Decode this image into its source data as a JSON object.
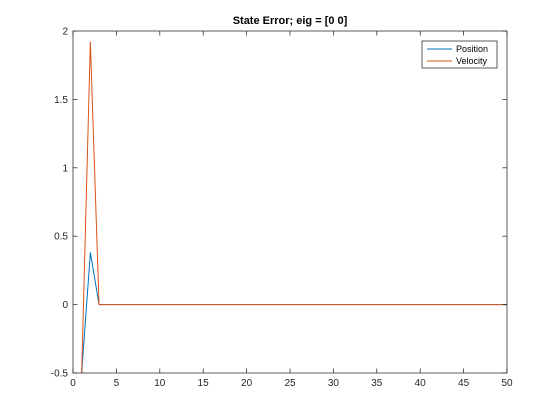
{
  "chart_data": {
    "type": "line",
    "title": "State Error; eig = [0 0]",
    "xlabel": "",
    "ylabel": "",
    "xlim": [
      0,
      50
    ],
    "ylim": [
      -0.5,
      2
    ],
    "xticks": [
      0,
      5,
      10,
      15,
      20,
      25,
      30,
      35,
      40,
      45,
      50
    ],
    "yticks": [
      -0.5,
      0,
      0.5,
      1,
      1.5,
      2
    ],
    "xtick_labels": [
      "0",
      "5",
      "10",
      "15",
      "20",
      "25",
      "30",
      "35",
      "40",
      "45",
      "50"
    ],
    "ytick_labels": [
      "-0.5",
      "0",
      "0.5",
      "1",
      "1.5",
      "2"
    ],
    "grid": false,
    "legend_location": "top-right",
    "series": [
      {
        "name": "Position",
        "color": "#0072BD",
        "x": [
          1,
          2,
          3,
          4,
          5,
          10,
          15,
          20,
          25,
          30,
          35,
          40,
          45,
          50
        ],
        "y": [
          -0.5,
          0.38,
          0,
          0,
          0,
          0,
          0,
          0,
          0,
          0,
          0,
          0,
          0,
          0
        ]
      },
      {
        "name": "Velocity",
        "color": "#D95319",
        "x": [
          1,
          2,
          3,
          4,
          5,
          10,
          15,
          20,
          25,
          30,
          35,
          40,
          45,
          50
        ],
        "y": [
          -0.5,
          1.92,
          0,
          0,
          0,
          0,
          0,
          0,
          0,
          0,
          0,
          0,
          0,
          0
        ]
      }
    ]
  }
}
